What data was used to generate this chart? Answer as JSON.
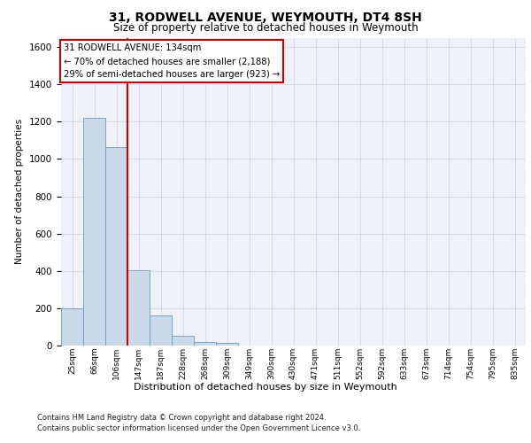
{
  "title1": "31, RODWELL AVENUE, WEYMOUTH, DT4 8SH",
  "title2": "Size of property relative to detached houses in Weymouth",
  "xlabel": "Distribution of detached houses by size in Weymouth",
  "ylabel": "Number of detached properties",
  "categories": [
    "25sqm",
    "66sqm",
    "106sqm",
    "147sqm",
    "187sqm",
    "228sqm",
    "268sqm",
    "309sqm",
    "349sqm",
    "390sqm",
    "430sqm",
    "471sqm",
    "511sqm",
    "552sqm",
    "592sqm",
    "633sqm",
    "673sqm",
    "714sqm",
    "754sqm",
    "795sqm",
    "835sqm"
  ],
  "values": [
    200,
    1220,
    1065,
    405,
    160,
    50,
    20,
    12,
    0,
    0,
    0,
    0,
    0,
    0,
    0,
    0,
    0,
    0,
    0,
    0,
    0
  ],
  "bar_color": "#c9d9e8",
  "bar_edge_color": "#6a9dbe",
  "vline_x": 2.5,
  "vline_color": "#cc0000",
  "annotation_text": "31 RODWELL AVENUE: 134sqm\n← 70% of detached houses are smaller (2,188)\n29% of semi-detached houses are larger (923) →",
  "annotation_box_color": "#ffffff",
  "annotation_box_edge": "#cc0000",
  "ylim": [
    0,
    1650
  ],
  "yticks": [
    0,
    200,
    400,
    600,
    800,
    1000,
    1200,
    1400,
    1600
  ],
  "grid_color": "#d0d8e8",
  "footnote1": "Contains HM Land Registry data © Crown copyright and database right 2024.",
  "footnote2": "Contains public sector information licensed under the Open Government Licence v3.0.",
  "bg_color": "#eef2f8"
}
